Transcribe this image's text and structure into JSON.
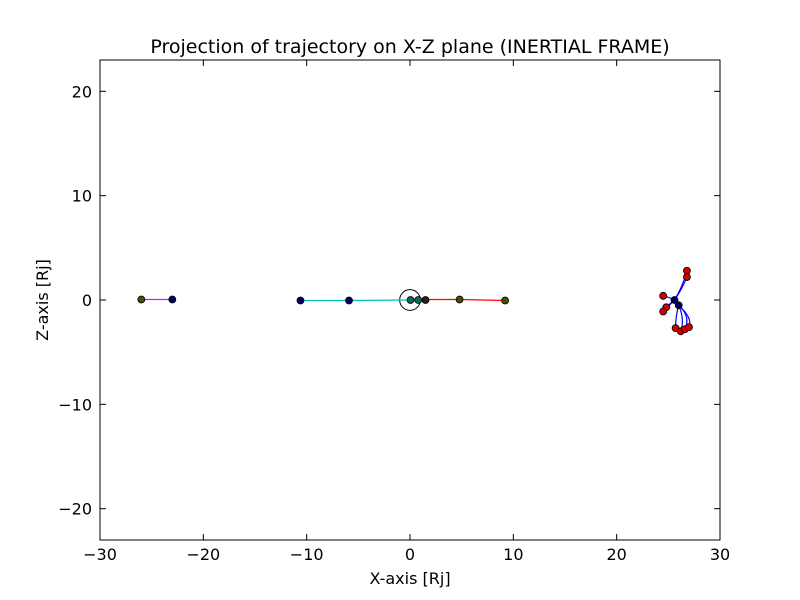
{
  "chart_data": {
    "type": "scatter",
    "title": "Projection of trajectory on X-Z plane (INERTIAL FRAME)",
    "xlabel": "X-axis [Rj]",
    "ylabel": "Z-axis [Rj]",
    "xlim": [
      -30,
      30
    ],
    "ylim": [
      -23,
      23
    ],
    "x_ticks": [
      -30,
      -20,
      -10,
      0,
      10,
      20,
      30
    ],
    "y_ticks": [
      -20,
      -10,
      0,
      10,
      20
    ],
    "x_tick_labels": [
      "−30",
      "−20",
      "−10",
      "0",
      "10",
      "20",
      "30"
    ],
    "y_tick_labels": [
      "−20",
      "−10",
      "0",
      "10",
      "20"
    ],
    "grid": false,
    "legend": "none",
    "central_body": {
      "x": 0,
      "z": 0,
      "radius": 1
    },
    "colors": {
      "magenta": "#ff00ff",
      "cyan": "#00bfbf",
      "teal": "#008080",
      "red": "#ff0000",
      "blue": "#0000ff",
      "dark_red": "#b30000",
      "marker_navy": "#00005a",
      "marker_teal": "#0a6a5a",
      "marker_olive": "#4a4a00",
      "marker_red": "#d40000",
      "marker_dark": "#222222"
    },
    "series": [
      {
        "color": "magenta",
        "line": [
          [
            -26,
            0.05
          ],
          [
            -23,
            0.05
          ]
        ],
        "markers": [
          [
            -26,
            0.05,
            "marker_olive"
          ],
          [
            -23,
            0.05,
            "marker_navy"
          ]
        ]
      },
      {
        "color": "cyan",
        "line": [
          [
            -10.6,
            -0.05
          ],
          [
            -5.9,
            -0.05
          ],
          [
            0.1,
            0
          ]
        ],
        "markers": [
          [
            -10.6,
            -0.05,
            "marker_navy"
          ],
          [
            -5.9,
            -0.05,
            "marker_navy"
          ]
        ]
      },
      {
        "color": "teal",
        "line": [
          [
            0,
            0
          ],
          [
            1.5,
            0
          ]
        ],
        "markers": [
          [
            0.05,
            0,
            "marker_teal"
          ],
          [
            0.8,
            0,
            "marker_teal"
          ]
        ]
      },
      {
        "color": "red",
        "line": [
          [
            1.5,
            0.05
          ],
          [
            4.8,
            0.05
          ],
          [
            9.2,
            -0.05
          ]
        ],
        "markers": [
          [
            1.5,
            0,
            "marker_dark"
          ],
          [
            4.8,
            0.05,
            "marker_olive"
          ],
          [
            9.2,
            -0.05,
            "marker_olive"
          ]
        ]
      },
      {
        "color": "blue",
        "curves": [
          [
            [
              25.6,
              0.0
            ],
            [
              26.3,
              1.0
            ],
            [
              26.8,
              2.2
            ]
          ],
          [
            [
              25.6,
              0.0
            ],
            [
              26.4,
              1.3
            ],
            [
              26.8,
              2.8
            ]
          ],
          [
            [
              25.6,
              0.0
            ],
            [
              25.0,
              0.3
            ],
            [
              24.5,
              0.4
            ]
          ],
          [
            [
              25.6,
              0.0
            ],
            [
              25.2,
              -0.3
            ],
            [
              24.8,
              -0.7
            ]
          ],
          [
            [
              25.6,
              0.0
            ],
            [
              25.0,
              -0.6
            ],
            [
              24.5,
              -1.1
            ]
          ],
          [
            [
              26.0,
              -0.5
            ],
            [
              25.7,
              -1.6
            ],
            [
              25.7,
              -2.7
            ]
          ],
          [
            [
              26.0,
              -0.5
            ],
            [
              26.6,
              -1.8
            ],
            [
              26.2,
              -3.0
            ]
          ],
          [
            [
              26.0,
              -0.5
            ],
            [
              27.2,
              -1.6
            ],
            [
              26.6,
              -2.8
            ]
          ],
          [
            [
              26.0,
              -0.5
            ],
            [
              27.4,
              -1.8
            ],
            [
              27.0,
              -2.6
            ]
          ]
        ],
        "markers": [
          [
            25.6,
            0.0,
            "marker_navy"
          ],
          [
            26.0,
            -0.5,
            "marker_navy"
          ],
          [
            26.8,
            2.8,
            "marker_red"
          ],
          [
            26.8,
            2.2,
            "marker_red"
          ],
          [
            24.5,
            0.4,
            "marker_red"
          ],
          [
            24.8,
            -0.7,
            "marker_red"
          ],
          [
            24.5,
            -1.1,
            "marker_red"
          ],
          [
            25.7,
            -2.7,
            "marker_red"
          ],
          [
            26.2,
            -3.0,
            "marker_red"
          ],
          [
            26.6,
            -2.8,
            "marker_red"
          ],
          [
            27.0,
            -2.6,
            "marker_red"
          ]
        ]
      }
    ]
  }
}
